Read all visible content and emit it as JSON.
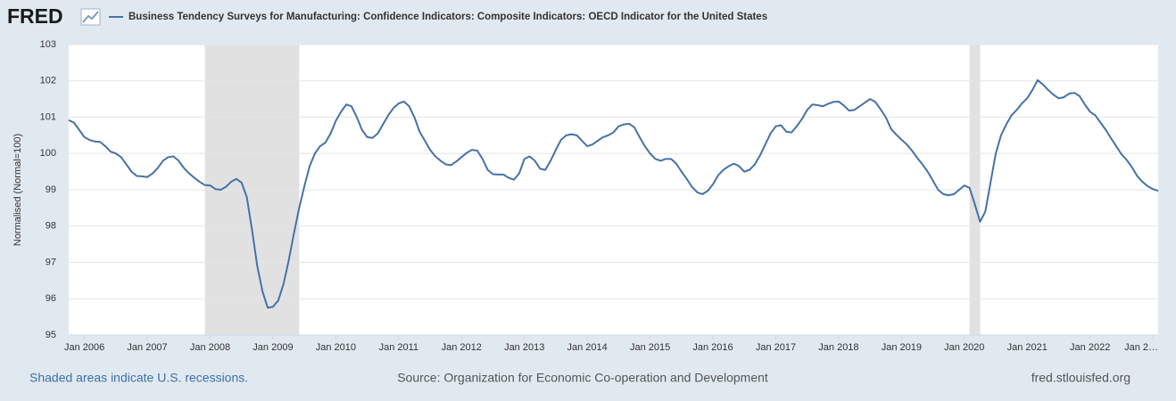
{
  "header": {
    "logo": "FRED"
  },
  "chart_data": {
    "type": "line",
    "y_label": "Normalised (Normal=100)",
    "x": [
      "2005-10",
      "2005-11",
      "2005-12",
      "2006-01",
      "2006-02",
      "2006-03",
      "2006-04",
      "2006-05",
      "2006-06",
      "2006-07",
      "2006-08",
      "2006-09",
      "2006-10",
      "2006-11",
      "2006-12",
      "2007-01",
      "2007-02",
      "2007-03",
      "2007-04",
      "2007-05",
      "2007-06",
      "2007-07",
      "2007-08",
      "2007-09",
      "2007-10",
      "2007-11",
      "2007-12",
      "2008-01",
      "2008-02",
      "2008-03",
      "2008-04",
      "2008-05",
      "2008-06",
      "2008-07",
      "2008-08",
      "2008-09",
      "2008-10",
      "2008-11",
      "2008-12",
      "2009-01",
      "2009-02",
      "2009-03",
      "2009-04",
      "2009-05",
      "2009-06",
      "2009-07",
      "2009-08",
      "2009-09",
      "2009-10",
      "2009-11",
      "2009-12",
      "2010-01",
      "2010-02",
      "2010-03",
      "2010-04",
      "2010-05",
      "2010-06",
      "2010-07",
      "2010-08",
      "2010-09",
      "2010-10",
      "2010-11",
      "2010-12",
      "2011-01",
      "2011-02",
      "2011-03",
      "2011-04",
      "2011-05",
      "2011-06",
      "2011-07",
      "2011-08",
      "2011-09",
      "2011-10",
      "2011-11",
      "2011-12",
      "2012-01",
      "2012-02",
      "2012-03",
      "2012-04",
      "2012-05",
      "2012-06",
      "2012-07",
      "2012-08",
      "2012-09",
      "2012-10",
      "2012-11",
      "2012-12",
      "2013-01",
      "2013-02",
      "2013-03",
      "2013-04",
      "2013-05",
      "2013-06",
      "2013-07",
      "2013-08",
      "2013-09",
      "2013-10",
      "2013-11",
      "2013-12",
      "2014-01",
      "2014-02",
      "2014-03",
      "2014-04",
      "2014-05",
      "2014-06",
      "2014-07",
      "2014-08",
      "2014-09",
      "2014-10",
      "2014-11",
      "2014-12",
      "2015-01",
      "2015-02",
      "2015-03",
      "2015-04",
      "2015-05",
      "2015-06",
      "2015-07",
      "2015-08",
      "2015-09",
      "2015-10",
      "2015-11",
      "2015-12",
      "2016-01",
      "2016-02",
      "2016-03",
      "2016-04",
      "2016-05",
      "2016-06",
      "2016-07",
      "2016-08",
      "2016-09",
      "2016-10",
      "2016-11",
      "2016-12",
      "2017-01",
      "2017-02",
      "2017-03",
      "2017-04",
      "2017-05",
      "2017-06",
      "2017-07",
      "2017-08",
      "2017-09",
      "2017-10",
      "2017-11",
      "2017-12",
      "2018-01",
      "2018-02",
      "2018-03",
      "2018-04",
      "2018-05",
      "2018-06",
      "2018-07",
      "2018-08",
      "2018-09",
      "2018-10",
      "2018-11",
      "2018-12",
      "2019-01",
      "2019-02",
      "2019-03",
      "2019-04",
      "2019-05",
      "2019-06",
      "2019-07",
      "2019-08",
      "2019-09",
      "2019-10",
      "2019-11",
      "2019-12",
      "2020-01",
      "2020-02",
      "2020-03",
      "2020-04",
      "2020-05",
      "2020-06",
      "2020-07",
      "2020-08",
      "2020-09",
      "2020-10",
      "2020-11",
      "2020-12",
      "2021-01",
      "2021-02",
      "2021-03",
      "2021-04",
      "2021-05",
      "2021-06",
      "2021-07",
      "2021-08",
      "2021-09",
      "2021-10",
      "2021-11",
      "2021-12",
      "2022-01",
      "2022-02",
      "2022-03",
      "2022-04",
      "2022-05",
      "2022-06",
      "2022-07",
      "2022-08",
      "2022-09",
      "2022-10",
      "2022-11",
      "2022-12",
      "2023-01",
      "2023-02"
    ],
    "series": [
      {
        "name": "Business Tendency Surveys for Manufacturing: Confidence Indicators: Composite Indicators: OECD Indicator for the United States",
        "color": "#4572a7",
        "values": [
          100.92,
          100.85,
          100.65,
          100.45,
          100.37,
          100.33,
          100.32,
          100.2,
          100.05,
          100.0,
          99.9,
          99.7,
          99.5,
          99.38,
          99.37,
          99.35,
          99.45,
          99.6,
          99.8,
          99.9,
          99.92,
          99.8,
          99.6,
          99.45,
          99.33,
          99.22,
          99.13,
          99.12,
          99.02,
          99.0,
          99.08,
          99.22,
          99.3,
          99.2,
          98.8,
          97.9,
          96.9,
          96.2,
          95.75,
          95.78,
          95.95,
          96.4,
          97.05,
          97.8,
          98.5,
          99.1,
          99.65,
          100.0,
          100.2,
          100.3,
          100.55,
          100.9,
          101.15,
          101.35,
          101.3,
          101.0,
          100.65,
          100.45,
          100.43,
          100.55,
          100.8,
          101.05,
          101.25,
          101.38,
          101.43,
          101.3,
          101.0,
          100.6,
          100.35,
          100.1,
          99.92,
          99.8,
          99.7,
          99.68,
          99.78,
          99.9,
          100.02,
          100.1,
          100.08,
          99.85,
          99.55,
          99.43,
          99.42,
          99.42,
          99.33,
          99.28,
          99.45,
          99.85,
          99.92,
          99.8,
          99.58,
          99.55,
          99.8,
          100.1,
          100.38,
          100.5,
          100.53,
          100.5,
          100.35,
          100.2,
          100.25,
          100.35,
          100.45,
          100.5,
          100.58,
          100.75,
          100.8,
          100.82,
          100.72,
          100.45,
          100.2,
          100.0,
          99.85,
          99.8,
          99.85,
          99.85,
          99.72,
          99.5,
          99.3,
          99.08,
          98.93,
          98.88,
          98.97,
          99.15,
          99.4,
          99.55,
          99.65,
          99.72,
          99.65,
          99.5,
          99.55,
          99.7,
          99.95,
          100.25,
          100.55,
          100.75,
          100.78,
          100.6,
          100.58,
          100.75,
          100.95,
          101.2,
          101.35,
          101.33,
          101.3,
          101.37,
          101.42,
          101.43,
          101.32,
          101.18,
          101.2,
          101.3,
          101.4,
          101.5,
          101.42,
          101.22,
          101.0,
          100.68,
          100.52,
          100.38,
          100.25,
          100.08,
          99.88,
          99.7,
          99.5,
          99.25,
          99.0,
          98.88,
          98.85,
          98.88,
          99.0,
          99.12,
          99.05,
          98.6,
          98.12,
          98.4,
          99.2,
          100.0,
          100.5,
          100.8,
          101.05,
          101.2,
          101.38,
          101.52,
          101.75,
          102.02,
          101.9,
          101.75,
          101.62,
          101.52,
          101.55,
          101.65,
          101.67,
          101.58,
          101.35,
          101.15,
          101.05,
          100.85,
          100.65,
          100.42,
          100.2,
          99.98,
          99.82,
          99.62,
          99.38,
          99.22,
          99.1,
          99.02,
          98.97
        ]
      }
    ],
    "recessions": [
      {
        "start": "2007-12",
        "end": "2009-06"
      },
      {
        "start": "2020-02",
        "end": "2020-04"
      }
    ],
    "recession_color": "#e1e1e1",
    "xlim": [
      "2005-10",
      "2023-02"
    ],
    "xticks": [
      {
        "value": "2006-01",
        "label": "Jan 2006"
      },
      {
        "value": "2007-01",
        "label": "Jan 2007"
      },
      {
        "value": "2008-01",
        "label": "Jan 2008"
      },
      {
        "value": "2009-01",
        "label": "Jan 2009"
      },
      {
        "value": "2010-01",
        "label": "Jan 2010"
      },
      {
        "value": "2011-01",
        "label": "Jan 2011"
      },
      {
        "value": "2012-01",
        "label": "Jan 2012"
      },
      {
        "value": "2013-01",
        "label": "Jan 2013"
      },
      {
        "value": "2014-01",
        "label": "Jan 2014"
      },
      {
        "value": "2015-01",
        "label": "Jan 2015"
      },
      {
        "value": "2016-01",
        "label": "Jan 2016"
      },
      {
        "value": "2017-01",
        "label": "Jan 2017"
      },
      {
        "value": "2018-01",
        "label": "Jan 2018"
      },
      {
        "value": "2019-01",
        "label": "Jan 2019"
      },
      {
        "value": "2020-01",
        "label": "Jan 2020"
      },
      {
        "value": "2021-01",
        "label": "Jan 2021"
      },
      {
        "value": "2022-01",
        "label": "Jan 2022"
      },
      {
        "value": "2023-01",
        "label": "Jan 2…"
      }
    ],
    "ylim": [
      95,
      103
    ],
    "yticks": [
      95,
      96,
      97,
      98,
      99,
      100,
      101,
      102,
      103
    ],
    "grid": true
  },
  "footer": {
    "note": "Shaded areas indicate U.S. recessions.",
    "source": "Source: Organization for Economic Co-operation and Development",
    "site": "fred.stlouisfed.org"
  }
}
